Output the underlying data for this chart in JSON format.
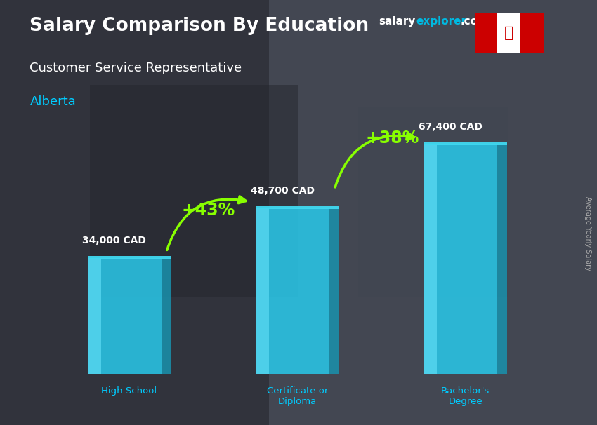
{
  "title": "Salary Comparison By Education",
  "subtitle": "Customer Service Representative",
  "location": "Alberta",
  "ylabel": "Average Yearly Salary",
  "categories": [
    "High School",
    "Certificate or\nDiploma",
    "Bachelor's\nDegree"
  ],
  "values": [
    34000,
    48700,
    67400
  ],
  "value_labels": [
    "34,000 CAD",
    "48,700 CAD",
    "67,400 CAD"
  ],
  "pct_changes": [
    "+43%",
    "+38%"
  ],
  "bar_color_front": "#29c5e6",
  "bar_color_light": "#5ddcf5",
  "bar_color_side": "#1a8faa",
  "bar_color_top": "#40d8f0",
  "title_color": "#ffffff",
  "subtitle_color": "#ffffff",
  "location_color": "#00ccff",
  "value_color": "#ffffff",
  "pct_color": "#88ff00",
  "arrow_color": "#88ff00",
  "xlabel_color": "#00ccff",
  "bg_color": "#4a5060",
  "watermark_salary": "#ffffff",
  "watermark_explorer": "#00b8e0",
  "watermark_com": "#ffffff",
  "side_label_color": "#aaaaaa"
}
